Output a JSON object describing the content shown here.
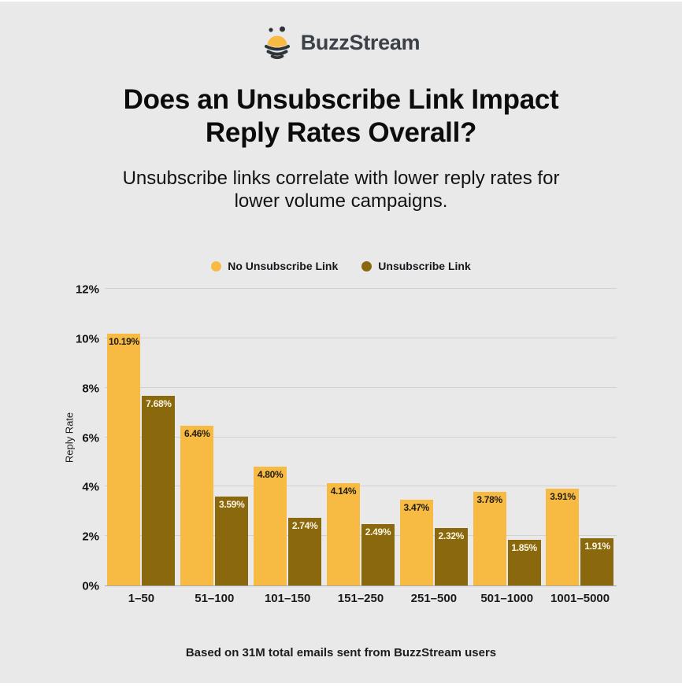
{
  "page": {
    "logo_text": "BuzzStream",
    "title_line1": "Does an Unsubscribe Link Impact",
    "title_line2": "Reply Rates Overall?",
    "subtitle_line1": "Unsubscribe links correlate with lower reply rates for",
    "subtitle_line2": "lower volume campaigns.",
    "footer": "Based on 31M total emails sent from BuzzStream users"
  },
  "colors": {
    "background": "#e9e9ea",
    "no_unsubscribe_bar": "#F7BB43",
    "unsubscribe_bar": "#8A690E",
    "logo_dark": "#2F3438",
    "gridline": "#d1d1d2"
  },
  "chart_data": {
    "type": "bar",
    "title": "",
    "categories": [
      "1–50",
      "51–100",
      "101–150",
      "151–250",
      "251–500",
      "501–1000",
      "1001–5000"
    ],
    "series": [
      {
        "name": "No Unsubscribe Link",
        "color": "#F7BB43",
        "values": [
          10.19,
          6.46,
          4.8,
          4.14,
          3.47,
          3.78,
          3.91
        ]
      },
      {
        "name": "Unsubscribe Link",
        "color": "#8A690E",
        "values": [
          7.68,
          3.59,
          2.74,
          2.49,
          2.32,
          1.85,
          1.91
        ]
      }
    ],
    "xlabel": "",
    "ylabel": "Reply Rate",
    "ylim": [
      0,
      12
    ],
    "ytick_step": 2,
    "ytick_labels": [
      "0%",
      "2%",
      "4%",
      "6%",
      "8%",
      "10%",
      "12%"
    ],
    "value_label_suffix": "%",
    "grid": true,
    "legend_position": "top"
  }
}
